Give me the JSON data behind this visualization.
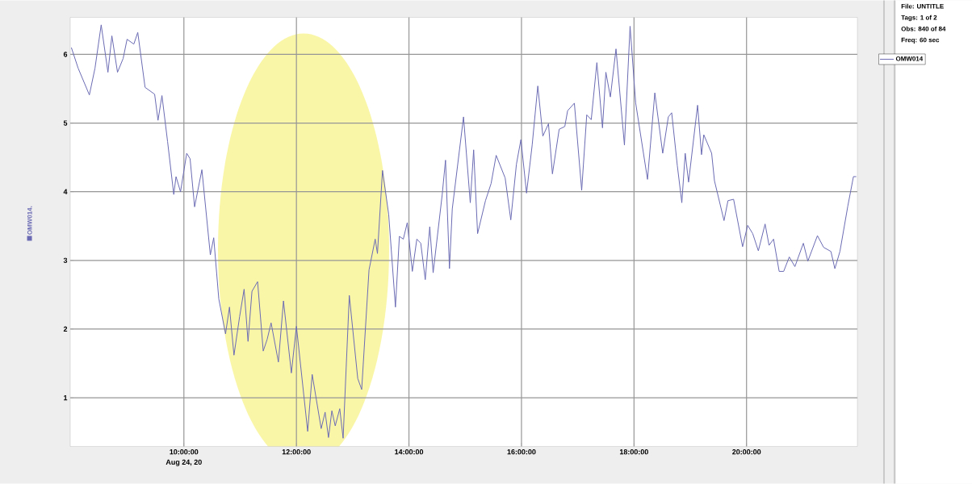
{
  "chart_data": {
    "type": "line",
    "ylabel": "OMW014.",
    "annotations": [
      "File: UNTITLE",
      "Tags: 1 of 2",
      "Obs: 840 of 84",
      "Freq: 60 sec",
      "Aug 24, 20"
    ],
    "xlim": [
      7.98,
      21.97
    ],
    "ylim": [
      0.29,
      6.54
    ],
    "xticks": [
      {
        "value": 10,
        "label": "10:00:00"
      },
      {
        "value": 12,
        "label": "12:00:00"
      },
      {
        "value": 14,
        "label": "14:00:00"
      },
      {
        "value": 16,
        "label": "16:00:00"
      },
      {
        "value": 18,
        "label": "18:00:00"
      },
      {
        "value": 20,
        "label": "20:00:00"
      }
    ],
    "yticks": [
      1,
      2,
      3,
      4,
      5,
      6
    ],
    "grid": true,
    "legend": "top right",
    "series": [
      {
        "name": "OMW014",
        "color": "#6a6ab4",
        "x": [
          8.0,
          8.12,
          8.32,
          8.42,
          8.53,
          8.65,
          8.72,
          8.82,
          8.92,
          8.99,
          9.11,
          9.18,
          9.31,
          9.48,
          9.54,
          9.61,
          9.71,
          9.82,
          9.86,
          9.94,
          10.05,
          10.11,
          10.19,
          10.32,
          10.47,
          10.53,
          10.62,
          10.74,
          10.81,
          10.89,
          10.99,
          11.07,
          11.14,
          11.21,
          11.31,
          11.41,
          11.48,
          11.55,
          11.68,
          11.77,
          11.91,
          12.0,
          12.2,
          12.28,
          12.44,
          12.51,
          12.57,
          12.63,
          12.69,
          12.77,
          12.83,
          12.94,
          13.09,
          13.16,
          13.29,
          13.4,
          13.44,
          13.53,
          13.64,
          13.76,
          13.83,
          13.9,
          13.97,
          14.06,
          14.14,
          14.21,
          14.29,
          14.37,
          14.43,
          14.59,
          14.65,
          14.72,
          14.77,
          14.97,
          15.09,
          15.15,
          15.22,
          15.36,
          15.46,
          15.55,
          15.71,
          15.81,
          15.91,
          15.99,
          16.09,
          16.19,
          16.29,
          16.38,
          16.48,
          16.55,
          16.67,
          16.77,
          16.82,
          16.94,
          17.07,
          17.16,
          17.24,
          17.34,
          17.44,
          17.5,
          17.58,
          17.68,
          17.83,
          17.93,
          18.03,
          18.24,
          18.37,
          18.51,
          18.61,
          18.67,
          18.77,
          18.85,
          18.91,
          18.97,
          19.13,
          19.2,
          19.24,
          19.38,
          19.43,
          19.6,
          19.67,
          19.77,
          19.93,
          20.02,
          20.11,
          20.21,
          20.33,
          20.4,
          20.48,
          20.58,
          20.66,
          20.76,
          20.86,
          21.01,
          21.09,
          21.26,
          21.37,
          21.5,
          21.57,
          21.66,
          21.8,
          21.9,
          21.95
        ],
        "values": [
          6.1,
          5.8,
          5.41,
          5.8,
          6.43,
          5.74,
          6.27,
          5.74,
          5.94,
          6.22,
          6.15,
          6.32,
          5.52,
          5.42,
          5.04,
          5.4,
          4.73,
          3.96,
          4.22,
          4.0,
          4.56,
          4.48,
          3.78,
          4.32,
          3.08,
          3.33,
          2.44,
          1.93,
          2.32,
          1.62,
          2.18,
          2.58,
          1.82,
          2.55,
          2.69,
          1.68,
          1.85,
          2.09,
          1.52,
          2.41,
          1.36,
          2.04,
          0.51,
          1.34,
          0.55,
          0.79,
          0.42,
          0.81,
          0.59,
          0.84,
          0.41,
          2.49,
          1.28,
          1.12,
          2.86,
          3.31,
          3.1,
          4.31,
          3.67,
          2.32,
          3.35,
          3.31,
          3.55,
          2.84,
          3.31,
          3.25,
          2.72,
          3.49,
          2.82,
          3.95,
          4.46,
          2.88,
          3.75,
          5.09,
          3.84,
          4.61,
          3.39,
          3.87,
          4.12,
          4.53,
          4.2,
          3.59,
          4.4,
          4.76,
          3.98,
          4.68,
          5.54,
          4.81,
          4.99,
          4.26,
          4.91,
          4.95,
          5.18,
          5.29,
          4.02,
          5.12,
          5.05,
          5.88,
          4.93,
          5.74,
          5.38,
          6.08,
          4.68,
          6.41,
          5.29,
          4.18,
          5.44,
          4.56,
          5.09,
          5.15,
          4.38,
          3.84,
          4.56,
          4.14,
          5.26,
          4.54,
          4.83,
          4.56,
          4.16,
          3.58,
          3.87,
          3.89,
          3.2,
          3.51,
          3.39,
          3.14,
          3.53,
          3.22,
          3.31,
          2.84,
          2.84,
          3.05,
          2.91,
          3.25,
          2.99,
          3.36,
          3.19,
          3.13,
          2.88,
          3.13,
          3.79,
          4.22,
          4.22
        ]
      }
    ]
  }
}
